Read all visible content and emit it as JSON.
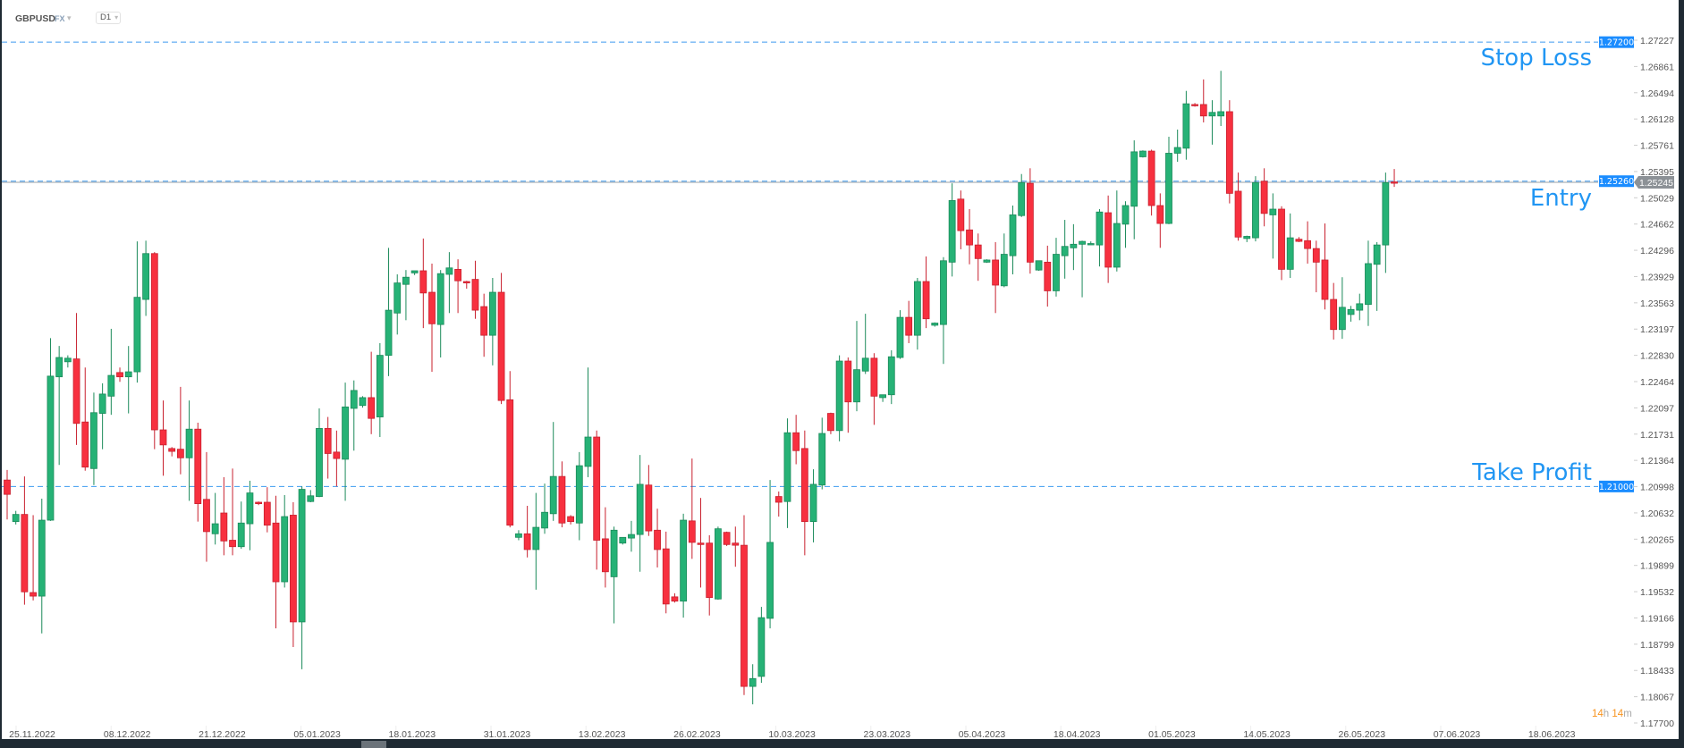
{
  "header": {
    "symbol": "GBPUSD",
    "market": "FX",
    "timeframe": "D1"
  },
  "annotations": {
    "stop_loss": "Stop Loss",
    "entry": "Entry",
    "take_profit": "Take Profit"
  },
  "levels": {
    "stop_loss": {
      "price": 1.272,
      "label": "1.27200"
    },
    "entry": {
      "price": 1.2526,
      "label": "1.25260"
    },
    "take_profit": {
      "price": 1.21,
      "label": "1.21000"
    },
    "current": {
      "price": 1.25245,
      "label": "1.25245"
    }
  },
  "colors": {
    "bull": "#26b276",
    "bear": "#f7303f",
    "level": "#3d9bf0",
    "current_badge": "#8c9196",
    "annotation": "#2196f3",
    "timer_accent": "#f7931e"
  },
  "timer": {
    "hours": "14",
    "h": "h",
    "minutes": "14",
    "m": "m"
  },
  "chart_data": {
    "type": "candlestick",
    "ylim": [
      1.177,
      1.27227
    ],
    "y_ticks": [
      "1.27227",
      "1.26861",
      "1.26494",
      "1.26128",
      "1.25761",
      "1.25395",
      "1.25029",
      "1.24662",
      "1.24296",
      "1.23929",
      "1.23563",
      "1.23197",
      "1.22830",
      "1.22464",
      "1.22097",
      "1.21731",
      "1.21364",
      "1.20998",
      "1.20632",
      "1.20265",
      "1.19899",
      "1.19532",
      "1.19166",
      "1.18799",
      "1.18433",
      "1.18067",
      "1.17700"
    ],
    "x_ticks": [
      "25.11.2022",
      "08.12.2022",
      "21.12.2022",
      "05.01.2023",
      "18.01.2023",
      "31.01.2023",
      "13.02.2023",
      "26.02.2023",
      "10.03.2023",
      "23.03.2023",
      "05.04.2023",
      "18.04.2023",
      "01.05.2023",
      "14.05.2023",
      "26.05.2023",
      "07.06.2023",
      "18.06.2023"
    ],
    "ohlc_fields": [
      "open",
      "high",
      "low",
      "close"
    ],
    "candles": [
      [
        1.2109,
        1.2123,
        1.2054,
        1.2089
      ],
      [
        1.2051,
        1.2066,
        1.2047,
        1.2061
      ],
      [
        1.2061,
        1.2114,
        1.1935,
        1.1953
      ],
      [
        1.1952,
        1.206,
        1.1941,
        1.1947
      ],
      [
        1.1947,
        1.2083,
        1.1895,
        1.2053
      ],
      [
        1.2053,
        1.2307,
        1.2052,
        1.2254
      ],
      [
        1.2253,
        1.2296,
        1.213,
        1.228
      ],
      [
        1.2274,
        1.2283,
        1.2266,
        1.2279
      ],
      [
        1.2278,
        1.2342,
        1.2158,
        1.2188
      ],
      [
        1.219,
        1.2266,
        1.2122,
        1.2127
      ],
      [
        1.2125,
        1.2231,
        1.2102,
        1.2203
      ],
      [
        1.2202,
        1.2244,
        1.2152,
        1.2229
      ],
      [
        1.2226,
        1.232,
        1.22,
        1.2255
      ],
      [
        1.2259,
        1.2266,
        1.2246,
        1.2253
      ],
      [
        1.2253,
        1.2296,
        1.2202,
        1.226
      ],
      [
        1.226,
        1.2442,
        1.2245,
        1.2364
      ],
      [
        1.2361,
        1.2443,
        1.2338,
        1.2425
      ],
      [
        1.2425,
        1.2427,
        1.2152,
        1.2179
      ],
      [
        1.2179,
        1.222,
        1.2115,
        1.2158
      ],
      [
        1.2153,
        1.2155,
        1.2142,
        1.2149
      ],
      [
        1.2152,
        1.2239,
        1.2117,
        1.214
      ],
      [
        1.214,
        1.222,
        1.208,
        1.218
      ],
      [
        1.218,
        1.2189,
        1.2051,
        1.2076
      ],
      [
        1.2082,
        1.2148,
        1.1995,
        1.2037
      ],
      [
        1.2034,
        1.2091,
        1.2019,
        1.2048
      ],
      [
        1.2063,
        1.2113,
        1.2004,
        1.2024
      ],
      [
        1.2025,
        1.2125,
        1.2004,
        1.2016
      ],
      [
        1.2016,
        1.2079,
        1.2013,
        1.2049
      ],
      [
        1.2048,
        1.2108,
        1.2011,
        1.2091
      ],
      [
        1.2078,
        1.2079,
        1.2074,
        1.2076
      ],
      [
        1.2078,
        1.2099,
        1.2036,
        1.2046
      ],
      [
        1.2049,
        1.2087,
        1.1902,
        1.1967
      ],
      [
        1.1967,
        1.2088,
        1.1959,
        1.2058
      ],
      [
        1.206,
        1.2078,
        1.1876,
        1.1911
      ],
      [
        1.1911,
        1.21,
        1.1845,
        1.2096
      ],
      [
        1.2079,
        1.2095,
        1.2078,
        1.2087
      ],
      [
        1.2086,
        1.2209,
        1.2085,
        1.2181
      ],
      [
        1.2181,
        1.2197,
        1.2111,
        1.2146
      ],
      [
        1.2148,
        1.2178,
        1.21,
        1.2139
      ],
      [
        1.2138,
        1.2245,
        1.208,
        1.2211
      ],
      [
        1.2209,
        1.2248,
        1.215,
        1.2234
      ],
      [
        1.2213,
        1.2226,
        1.221,
        1.2224
      ],
      [
        1.2224,
        1.2288,
        1.2173,
        1.2195
      ],
      [
        1.2197,
        1.23,
        1.2169,
        1.2283
      ],
      [
        1.2283,
        1.2433,
        1.2254,
        1.2346
      ],
      [
        1.2342,
        1.2396,
        1.2312,
        1.2384
      ],
      [
        1.2382,
        1.2402,
        1.2332,
        1.2392
      ],
      [
        1.2398,
        1.2401,
        1.2395,
        1.2401
      ],
      [
        1.2401,
        1.2446,
        1.2321,
        1.237
      ],
      [
        1.2371,
        1.2411,
        1.226,
        1.2327
      ],
      [
        1.2326,
        1.2402,
        1.228,
        1.2397
      ],
      [
        1.2396,
        1.2427,
        1.2342,
        1.2405
      ],
      [
        1.2403,
        1.2417,
        1.2342,
        1.2387
      ],
      [
        1.2386,
        1.2387,
        1.2376,
        1.2384
      ],
      [
        1.2389,
        1.2415,
        1.2334,
        1.2346
      ],
      [
        1.2351,
        1.2369,
        1.2281,
        1.2311
      ],
      [
        1.2311,
        1.2391,
        1.2269,
        1.2371
      ],
      [
        1.2371,
        1.2398,
        1.2215,
        1.222
      ],
      [
        1.2221,
        1.2261,
        1.2043,
        1.2046
      ],
      [
        1.2029,
        1.2039,
        1.2025,
        1.2034
      ],
      [
        1.2034,
        1.2073,
        1.2001,
        1.2012
      ],
      [
        1.2012,
        1.2091,
        1.1956,
        1.2043
      ],
      [
        1.2042,
        1.2104,
        1.2034,
        1.2064
      ],
      [
        1.2062,
        1.219,
        1.2052,
        1.2114
      ],
      [
        1.2114,
        1.2135,
        1.2043,
        1.2049
      ],
      [
        1.2058,
        1.206,
        1.2047,
        1.2051
      ],
      [
        1.2049,
        1.2148,
        1.2025,
        1.2129
      ],
      [
        1.2128,
        1.2266,
        1.2113,
        1.2169
      ],
      [
        1.2169,
        1.2178,
        1.1984,
        1.2025
      ],
      [
        1.2027,
        1.2071,
        1.1959,
        1.1981
      ],
      [
        1.1974,
        1.2044,
        1.1909,
        1.2039
      ],
      [
        1.2021,
        1.2029,
        1.2019,
        1.2029
      ],
      [
        1.2028,
        1.2052,
        1.2009,
        1.2033
      ],
      [
        1.2033,
        1.2144,
        1.1981,
        1.2103
      ],
      [
        1.2102,
        1.213,
        1.2031,
        1.2038
      ],
      [
        1.2039,
        1.2069,
        1.1987,
        1.2012
      ],
      [
        1.2013,
        1.2037,
        1.1923,
        1.1936
      ],
      [
        1.1946,
        1.1951,
        1.1938,
        1.194
      ],
      [
        1.194,
        1.2062,
        1.1917,
        1.2053
      ],
      [
        1.2052,
        1.2139,
        1.1999,
        1.2022
      ],
      [
        1.2021,
        1.2084,
        1.1959,
        1.2019
      ],
      [
        1.2021,
        1.2032,
        1.192,
        1.1945
      ],
      [
        1.1943,
        1.2044,
        1.1942,
        1.2041
      ],
      [
        1.2036,
        1.2037,
        1.2017,
        1.2019
      ],
      [
        1.2021,
        1.2044,
        1.1988,
        1.2018
      ],
      [
        1.2018,
        1.206,
        1.1809,
        1.1821
      ],
      [
        1.1821,
        1.1852,
        1.1796,
        1.1832
      ],
      [
        1.1835,
        1.1932,
        1.1826,
        1.1917
      ],
      [
        1.1916,
        1.2109,
        1.1902,
        1.2022
      ],
      [
        1.2086,
        1.2093,
        1.2058,
        1.2078
      ],
      [
        1.2079,
        1.2195,
        1.2042,
        1.2175
      ],
      [
        1.2175,
        1.22,
        1.2131,
        1.215
      ],
      [
        1.2153,
        1.2178,
        1.2004,
        1.2051
      ],
      [
        1.2051,
        1.2124,
        1.2022,
        1.2103
      ],
      [
        1.2102,
        1.2196,
        1.2096,
        1.2174
      ],
      [
        1.2202,
        1.2203,
        1.2173,
        1.2178
      ],
      [
        1.2178,
        1.2283,
        1.2163,
        1.2275
      ],
      [
        1.2275,
        1.228,
        1.2175,
        1.2218
      ],
      [
        1.2218,
        1.2331,
        1.2205,
        1.2263
      ],
      [
        1.2261,
        1.2341,
        1.2257,
        1.2279
      ],
      [
        1.2279,
        1.2286,
        1.2186,
        1.2226
      ],
      [
        1.2224,
        1.2228,
        1.2218,
        1.2228
      ],
      [
        1.2228,
        1.229,
        1.2215,
        1.2281
      ],
      [
        1.228,
        1.2346,
        1.2278,
        1.2336
      ],
      [
        1.2336,
        1.2359,
        1.23,
        1.2311
      ],
      [
        1.2311,
        1.2391,
        1.2291,
        1.2386
      ],
      [
        1.2386,
        1.2421,
        1.2321,
        1.2334
      ],
      [
        1.2325,
        1.2329,
        1.2323,
        1.2328
      ],
      [
        1.2326,
        1.242,
        1.2271,
        1.2415
      ],
      [
        1.2413,
        1.2523,
        1.2393,
        1.2499
      ],
      [
        1.2501,
        1.2513,
        1.2431,
        1.2457
      ],
      [
        1.2458,
        1.2487,
        1.241,
        1.2437
      ],
      [
        1.2437,
        1.2453,
        1.2387,
        1.2418
      ],
      [
        1.2413,
        1.2417,
        1.2412,
        1.2416
      ],
      [
        1.2416,
        1.2441,
        1.2342,
        1.2381
      ],
      [
        1.238,
        1.2453,
        1.2378,
        1.2424
      ],
      [
        1.2422,
        1.2492,
        1.2396,
        1.2479
      ],
      [
        1.2478,
        1.2536,
        1.2476,
        1.2524
      ],
      [
        1.2523,
        1.2544,
        1.2397,
        1.2413
      ],
      [
        1.2402,
        1.2415,
        1.2401,
        1.2415
      ],
      [
        1.2413,
        1.2436,
        1.2351,
        1.2373
      ],
      [
        1.2373,
        1.2447,
        1.2365,
        1.2424
      ],
      [
        1.2422,
        1.2472,
        1.239,
        1.2435
      ],
      [
        1.2433,
        1.2466,
        1.2402,
        1.2438
      ],
      [
        1.2438,
        1.2443,
        1.2364,
        1.2442
      ],
      [
        1.2438,
        1.2442,
        1.2437,
        1.2439
      ],
      [
        1.2437,
        1.2487,
        1.2407,
        1.2483
      ],
      [
        1.2482,
        1.2506,
        1.2384,
        1.2406
      ],
      [
        1.2406,
        1.2513,
        1.24,
        1.2467
      ],
      [
        1.2466,
        1.2498,
        1.2433,
        1.2492
      ],
      [
        1.2491,
        1.2583,
        1.2445,
        1.2567
      ],
      [
        1.256,
        1.2569,
        1.2559,
        1.2568
      ],
      [
        1.2568,
        1.257,
        1.2478,
        1.2492
      ],
      [
        1.2492,
        1.2509,
        1.2433,
        1.2467
      ],
      [
        1.2467,
        1.2588,
        1.2466,
        1.2565
      ],
      [
        1.2565,
        1.2598,
        1.2553,
        1.2573
      ],
      [
        1.2572,
        1.2652,
        1.2556,
        1.2634
      ],
      [
        1.2633,
        1.2635,
        1.263,
        1.2632
      ],
      [
        1.2633,
        1.2668,
        1.2608,
        1.2617
      ],
      [
        1.2617,
        1.2639,
        1.2577,
        1.2622
      ],
      [
        1.2617,
        1.268,
        1.2603,
        1.2623
      ],
      [
        1.2623,
        1.2639,
        1.2495,
        1.2509
      ],
      [
        1.2512,
        1.2538,
        1.2443,
        1.2448
      ],
      [
        1.2446,
        1.245,
        1.2441,
        1.2449
      ],
      [
        1.2447,
        1.2533,
        1.2442,
        1.2524
      ],
      [
        1.2526,
        1.2544,
        1.2463,
        1.2481
      ],
      [
        1.2479,
        1.2509,
        1.2418,
        1.2487
      ],
      [
        1.2487,
        1.2491,
        1.2388,
        1.2403
      ],
      [
        1.2403,
        1.2481,
        1.2391,
        1.2447
      ],
      [
        1.2445,
        1.2448,
        1.2441,
        1.2442
      ],
      [
        1.2443,
        1.247,
        1.2411,
        1.2432
      ],
      [
        1.2432,
        1.2443,
        1.2371,
        1.2413
      ],
      [
        1.2416,
        1.2467,
        1.2347,
        1.2361
      ],
      [
        1.2361,
        1.2384,
        1.2305,
        1.2319
      ],
      [
        1.2319,
        1.2392,
        1.2306,
        1.235
      ],
      [
        1.234,
        1.2352,
        1.233,
        1.2347
      ],
      [
        1.2346,
        1.2369,
        1.2332,
        1.2355
      ],
      [
        1.2354,
        1.2443,
        1.2324,
        1.2411
      ],
      [
        1.241,
        1.2441,
        1.2345,
        1.2437
      ],
      [
        1.2437,
        1.2538,
        1.2398,
        1.2524
      ],
      [
        1.2525,
        1.2543,
        1.2518,
        1.25245
      ]
    ]
  }
}
